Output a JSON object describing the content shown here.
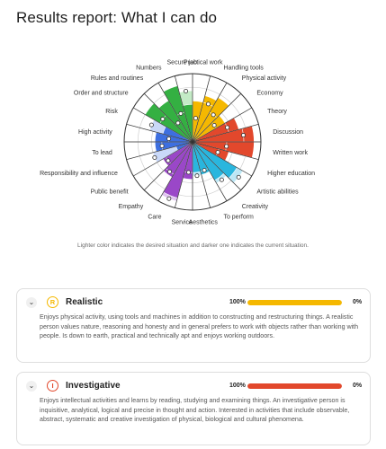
{
  "page": {
    "title": "Results report: What I can do"
  },
  "chart_data": {
    "type": "radial-bar",
    "categories": [
      "Practical work",
      "Handling tools",
      "Physical activity",
      "Economy",
      "Theory",
      "Discussion",
      "Written work",
      "Higher education",
      "Artistic abilities",
      "Creativity",
      "To perform",
      "Aesthetics",
      "Service",
      "Care",
      "Empathy",
      "Public benefit",
      "Responsibility and influence",
      "To lead",
      "High activity",
      "Risk",
      "Order and structure",
      "Rules and routines",
      "Numbers",
      "Secure job"
    ],
    "current": [
      0.6,
      0.7,
      0.75,
      0.55,
      0.7,
      0.9,
      0.9,
      0.55,
      0.75,
      0.65,
      0.5,
      0.45,
      0.55,
      0.85,
      0.6,
      0.5,
      0.25,
      0.55,
      0.55,
      0.45,
      0.8,
      0.7,
      0.85,
      0.55
    ],
    "desired": [
      0.35,
      0.6,
      0.5,
      0.4,
      0.55,
      0.75,
      0.5,
      0.4,
      0.85,
      0.7,
      0.45,
      0.5,
      0.45,
      0.9,
      0.55,
      0.45,
      0.6,
      0.45,
      0.35,
      0.65,
      0.55,
      0.35,
      0.45,
      0.75
    ],
    "caption": "Lighter color indicates the desired situation and darker one indicates the current situation."
  },
  "cards": [
    {
      "letter": "R",
      "name": "Realistic",
      "left_pct": "100%",
      "right_pct": "0%",
      "fill": 1.0,
      "color": "#f5b800",
      "desc": "Enjoys physical activity, using tools and machines in addition to constructing and restructuring things. A realistic person values nature, reasoning and honesty and in general prefers to work with objects rather than working with people. Is down to earth, practical and technically apt and enjoys working outdoors."
    },
    {
      "letter": "I",
      "name": "Investigative",
      "left_pct": "100%",
      "right_pct": "0%",
      "fill": 1.0,
      "color": "#e2482c",
      "desc": "Enjoys intellectual activities and learns by reading, studying and examining things. An investigative person is inquisitive, analytical, logical and precise in thought and action. Interested in activities that include observable, abstract, systematic and creative investigation of physical, biological and cultural phenomena."
    }
  ],
  "colors": {
    "yellow": "#f5b800",
    "yellow_light": "#fde9a6",
    "red": "#e2482c",
    "red_light": "#f6c1b5",
    "cyan": "#29b6de",
    "cyan_light": "#bde7f5",
    "purple": "#9a47c8",
    "purple_light": "#dfc3ef",
    "blue": "#3d6fe0",
    "blue_light": "#c9d8f8",
    "green": "#34b042",
    "green_light": "#c3ebc6"
  }
}
